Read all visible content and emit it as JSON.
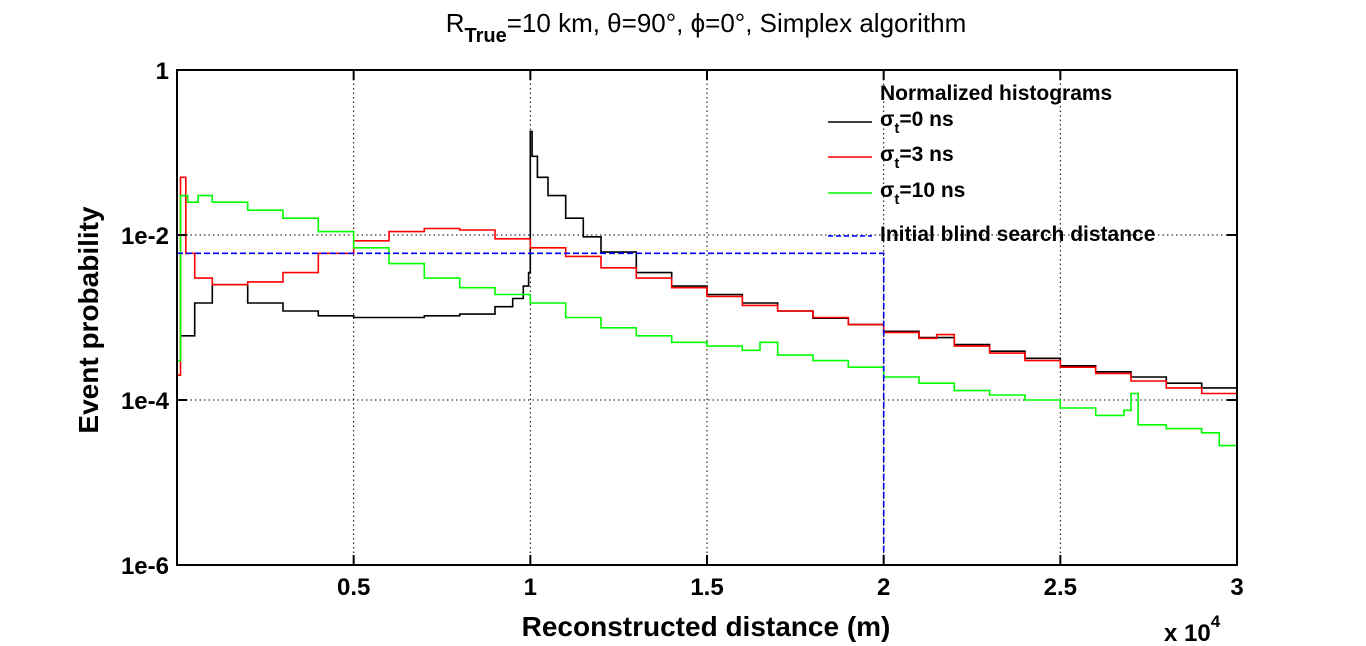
{
  "chart_data": {
    "type": "line",
    "title": {
      "prefix": "R",
      "subscript": "True",
      "rest": "=10 km, θ=90°, ϕ=0°, Simplex algorithm"
    },
    "xlabel": "Reconstructed distance (m)",
    "ylabel": "Event probability",
    "x_multiplier": {
      "base": "x 10",
      "exponent": "4"
    },
    "xlim": [
      0,
      30000
    ],
    "ylim": [
      1e-06,
      1
    ],
    "yscale": "log",
    "x_ticks": [
      5000,
      10000,
      15000,
      20000,
      25000,
      30000
    ],
    "x_tick_labels": [
      "0.5",
      "1",
      "1.5",
      "2",
      "2.5",
      "3"
    ],
    "y_ticks": [
      1e-06,
      0.0001,
      0.01,
      1
    ],
    "y_tick_labels": [
      "1e-6",
      "1e-4",
      "1e-2",
      "1"
    ],
    "grid": true,
    "legend": {
      "title": "Normalized histograms",
      "position": "top-right"
    },
    "series": [
      {
        "name": "σt=0 ns",
        "label_base": "σ",
        "label_sub": "t",
        "label_rest": "=0 ns",
        "color": "#000000",
        "style": "solid",
        "x": [
          100,
          500,
          1000,
          2000,
          3000,
          4000,
          5000,
          6000,
          7000,
          8000,
          9000,
          9500,
          9800,
          9950,
          10000,
          10050,
          10200,
          10500,
          11000,
          11500,
          12000,
          13000,
          14000,
          15000,
          16000,
          17000,
          18000,
          19000,
          20000,
          21000,
          22000,
          23000,
          24000,
          25000,
          26000,
          27000,
          28000,
          29000,
          30000
        ],
        "y": [
          0.0006,
          0.0015,
          0.0025,
          0.0015,
          0.0012,
          0.00105,
          0.001,
          0.001,
          0.00105,
          0.0011,
          0.00135,
          0.0017,
          0.0024,
          0.0035,
          0.18,
          0.09,
          0.05,
          0.03,
          0.016,
          0.0095,
          0.0062,
          0.0035,
          0.0024,
          0.0019,
          0.0015,
          0.0012,
          0.00098,
          0.00082,
          0.00068,
          0.00057,
          0.00047,
          0.00039,
          0.00032,
          0.00026,
          0.00022,
          0.00019,
          0.00016,
          0.00014,
          0.00012
        ]
      },
      {
        "name": "σt=3 ns",
        "label_base": "σ",
        "label_sub": "t",
        "label_rest": "=3 ns",
        "color": "#ff0000",
        "style": "solid",
        "x": [
          0,
          100,
          250,
          500,
          1000,
          2000,
          3000,
          4000,
          5000,
          6000,
          7000,
          8000,
          9000,
          10000,
          11000,
          12000,
          13000,
          14000,
          15000,
          16000,
          17000,
          18000,
          19000,
          20000,
          21000,
          21500,
          22000,
          23000,
          24000,
          25000,
          26000,
          27000,
          28000,
          29000,
          30000
        ],
        "y": [
          0.0002,
          0.05,
          0.006,
          0.003,
          0.0025,
          0.0027,
          0.0035,
          0.006,
          0.0085,
          0.011,
          0.012,
          0.0115,
          0.009,
          0.007,
          0.0055,
          0.004,
          0.003,
          0.0023,
          0.0018,
          0.0014,
          0.0012,
          0.001,
          0.00082,
          0.00066,
          0.00056,
          0.00062,
          0.00045,
          0.00037,
          0.0003,
          0.00025,
          0.00021,
          0.00017,
          0.00014,
          0.00012,
          0.0001
        ]
      },
      {
        "name": "σt=10 ns",
        "label_base": "σ",
        "label_sub": "t",
        "label_rest": "=10 ns",
        "color": "#00ff00",
        "style": "solid",
        "x": [
          0,
          100,
          300,
          600,
          1000,
          2000,
          3000,
          4000,
          5000,
          6000,
          7000,
          8000,
          9000,
          10000,
          11000,
          12000,
          13000,
          14000,
          15000,
          16000,
          16500,
          17000,
          18000,
          19000,
          20000,
          21000,
          22000,
          23000,
          24000,
          25000,
          26000,
          26800,
          27000,
          27200,
          28000,
          29000,
          29500,
          30000
        ],
        "y": [
          0.0003,
          0.03,
          0.025,
          0.03,
          0.025,
          0.02,
          0.016,
          0.011,
          0.007,
          0.0045,
          0.003,
          0.0023,
          0.0019,
          0.0015,
          0.001,
          0.00075,
          0.0006,
          0.0005,
          0.00045,
          0.0004,
          0.0005,
          0.00035,
          0.0003,
          0.00025,
          0.00019,
          0.00016,
          0.00013,
          0.000115,
          0.0001,
          8e-05,
          6.5e-05,
          7.5e-05,
          0.00012,
          5e-05,
          4.5e-05,
          4e-05,
          2.8e-05,
          3.5e-05
        ]
      },
      {
        "name": "Initial blind search distance",
        "color": "#0000ff",
        "style": "dashed",
        "x": [
          0,
          20000,
          20000
        ],
        "y": [
          0.006,
          0.006,
          1e-06
        ]
      }
    ]
  }
}
